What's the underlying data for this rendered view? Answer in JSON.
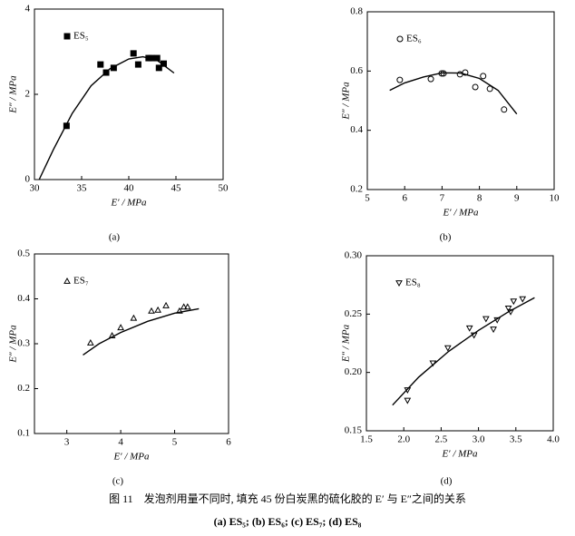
{
  "chart_data": [
    {
      "type": "scatter",
      "xlabel": "E′ / MPa",
      "ylabel": "E″ / MPa",
      "panel_label": "(a)",
      "marker": "square",
      "legend": "upper left",
      "xlim": [
        30,
        50
      ],
      "xticks": [
        30,
        35,
        40,
        45,
        50
      ],
      "ylim": [
        0,
        4
      ],
      "yticks": [
        0,
        2,
        4
      ],
      "series": [
        {
          "name": "ES₅",
          "color": "#000000",
          "x": [
            33.4,
            37.0,
            37.6,
            38.4,
            40.5,
            41.0,
            42.1,
            42.4,
            43.0,
            43.2,
            43.7
          ],
          "values": [
            1.26,
            2.7,
            2.51,
            2.62,
            2.96,
            2.7,
            2.85,
            2.85,
            2.85,
            2.62,
            2.72
          ]
        }
      ],
      "fit": {
        "x": [
          30.5,
          32,
          34,
          36,
          38,
          40,
          41.5,
          43,
          44.8
        ],
        "values": [
          0,
          0.7,
          1.55,
          2.2,
          2.6,
          2.83,
          2.88,
          2.8,
          2.5
        ]
      }
    },
    {
      "type": "scatter",
      "xlabel": "E′ / MPa",
      "ylabel": "E″ / MPa",
      "panel_label": "(b)",
      "marker": "circle",
      "legend": "upper left",
      "xlim": [
        5,
        10
      ],
      "xticks": [
        5,
        6,
        7,
        8,
        9,
        10
      ],
      "ylim": [
        0.2,
        0.8
      ],
      "yticks": [
        0.2,
        0.4,
        0.6,
        0.8
      ],
      "series": [
        {
          "name": "ES₆",
          "color": "#000000",
          "x": [
            5.87,
            6.7,
            6.99,
            7.04,
            7.48,
            7.62,
            7.89,
            8.1,
            8.28,
            8.66
          ],
          "values": [
            0.57,
            0.573,
            0.592,
            0.592,
            0.589,
            0.595,
            0.546,
            0.583,
            0.54,
            0.47
          ]
        }
      ],
      "fit": {
        "x": [
          5.6,
          6,
          6.5,
          7,
          7.5,
          8,
          8.5,
          9
        ],
        "values": [
          0.535,
          0.56,
          0.58,
          0.594,
          0.593,
          0.575,
          0.535,
          0.455
        ]
      }
    },
    {
      "type": "scatter",
      "xlabel": "E′ / MPa",
      "ylabel": "E″ / MPa",
      "panel_label": "(c)",
      "marker": "triangle-up",
      "legend": "upper left",
      "xlim": [
        2.4,
        6
      ],
      "xticks": [
        3,
        4,
        5,
        6
      ],
      "ylim": [
        0.1,
        0.5
      ],
      "yticks": [
        0.1,
        0.2,
        0.3,
        0.4,
        0.5
      ],
      "series": [
        {
          "name": "ES₇",
          "color": "#000000",
          "x": [
            3.44,
            3.84,
            4.0,
            4.24,
            4.57,
            4.69,
            4.84,
            5.09,
            5.17,
            5.24
          ],
          "values": [
            0.302,
            0.318,
            0.336,
            0.357,
            0.373,
            0.375,
            0.385,
            0.373,
            0.382,
            0.382
          ]
        }
      ],
      "fit": {
        "x": [
          3.3,
          3.6,
          4,
          4.5,
          5,
          5.45
        ],
        "values": [
          0.275,
          0.3,
          0.325,
          0.35,
          0.368,
          0.378
        ]
      }
    },
    {
      "type": "scatter",
      "xlabel": "E′ / MPa",
      "ylabel": "E″ / MPa",
      "panel_label": "(d)",
      "marker": "triangle-down",
      "legend": "upper left",
      "xlim": [
        1.5,
        4.0
      ],
      "xticks": [
        {
          "value": 1.5,
          "label": "1.5"
        },
        {
          "value": 2,
          "label": "2.0"
        },
        {
          "value": 2.5,
          "label": "2.5"
        },
        {
          "value": 3,
          "label": "3.0"
        },
        {
          "value": 3.5,
          "label": "3.5"
        },
        {
          "value": 4,
          "label": "4.0"
        }
      ],
      "ylim": [
        0.15,
        0.3
      ],
      "yticks": [
        {
          "value": 0.15,
          "label": "0.15"
        },
        {
          "value": 0.2,
          "label": "0.20"
        },
        {
          "value": 0.25,
          "label": "0.25"
        },
        {
          "value": 0.3,
          "label": "0.30"
        }
      ],
      "series": [
        {
          "name": "ES₈",
          "color": "#000000",
          "x": [
            2.05,
            2.05,
            2.39,
            2.59,
            2.88,
            2.94,
            3.1,
            3.2,
            3.25,
            3.4,
            3.43,
            3.47,
            3.59
          ],
          "values": [
            0.185,
            0.176,
            0.208,
            0.221,
            0.238,
            0.232,
            0.246,
            0.237,
            0.245,
            0.255,
            0.252,
            0.261,
            0.263
          ]
        }
      ],
      "fit": {
        "x": [
          1.85,
          2.2,
          2.6,
          3,
          3.4,
          3.75
        ],
        "values": [
          0.172,
          0.196,
          0.218,
          0.236,
          0.252,
          0.264
        ]
      }
    }
  ],
  "caption": {
    "line1": "图 11　发泡剂用量不同时, 填充 45 份白炭黑的硫化胶的 E′ 与 E″之间的关系",
    "line2": "(a) ES₅; (b) ES₆; (c) ES₇; (d) ES₈"
  }
}
